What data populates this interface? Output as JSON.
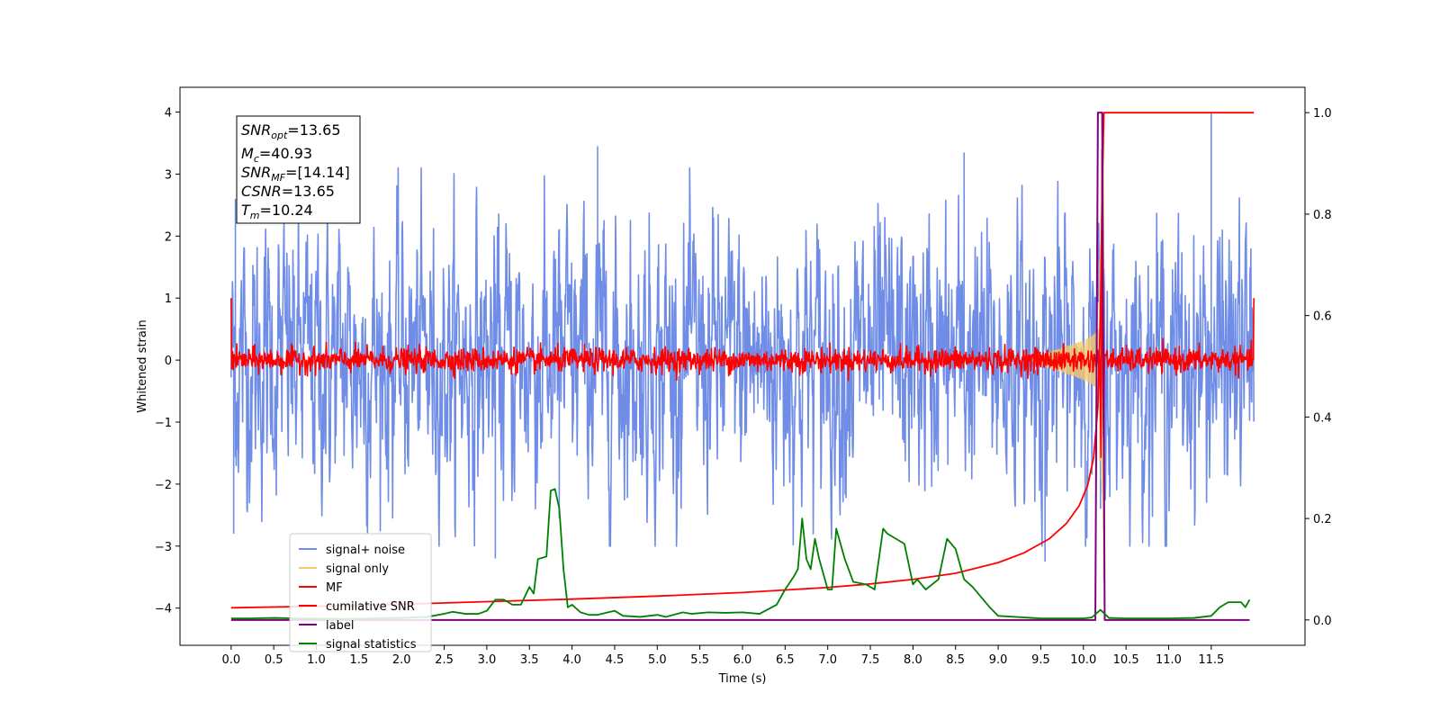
{
  "chart_data": {
    "type": "line",
    "title": "",
    "xlabel": "Time (s)",
    "ylabel": "Whitened strain",
    "xlim": [
      -0.6,
      12.6
    ],
    "ylim": [
      -4.6,
      4.4
    ],
    "y2lim": [
      -0.05,
      1.05
    ],
    "x_ticks": [
      0.0,
      0.5,
      1.0,
      1.5,
      2.0,
      2.5,
      3.0,
      3.5,
      4.0,
      4.5,
      5.0,
      5.5,
      6.0,
      6.5,
      7.0,
      7.5,
      8.0,
      8.5,
      9.0,
      9.5,
      10.0,
      10.5,
      11.0,
      11.5
    ],
    "x_tick_labels": [
      "0.0",
      "0.5",
      "1.0",
      "1.5",
      "2.0",
      "2.5",
      "3.0",
      "3.5",
      "4.0",
      "4.5",
      "5.0",
      "5.5",
      "6.0",
      "6.5",
      "7.0",
      "7.5",
      "8.0",
      "8.5",
      "9.0",
      "9.5",
      "10.0",
      "10.5",
      "11.0",
      "11.5"
    ],
    "y_ticks": [
      -4,
      -3,
      -2,
      -1,
      0,
      1,
      2,
      3,
      4
    ],
    "y_tick_labels": [
      "−4",
      "−3",
      "−2",
      "−1",
      "0",
      "1",
      "2",
      "3",
      "4"
    ],
    "y2_ticks": [
      0.0,
      0.2,
      0.4,
      0.6,
      0.8,
      1.0
    ],
    "y2_tick_labels": [
      "0.0",
      "0.2",
      "0.4",
      "0.6",
      "0.8",
      "1.0"
    ],
    "grid": false,
    "legend_position": "lower-left",
    "stats_box": {
      "snr_opt": "13.65",
      "mc": "40.93",
      "snr_mf": "[14.14]",
      "csnr": "13.65",
      "tm": "10.24"
    },
    "series": [
      {
        "name": "signal+ noise",
        "color": "#6f8de6",
        "axis": "left",
        "kind": "noise",
        "x_range": [
          0.0,
          12.0
        ],
        "amplitude_envelope": [
          [
            0.0,
            2.5
          ],
          [
            12.0,
            2.5
          ]
        ],
        "peak_values": [
          [
            0.05,
            2.6
          ],
          [
            0.03,
            -2.8
          ],
          [
            3.85,
            -2.55
          ],
          [
            4.3,
            3.45
          ],
          [
            8.6,
            3.35
          ],
          [
            9.55,
            -3.25
          ],
          [
            3.1,
            -3.2
          ],
          [
            11.5,
            4.0
          ],
          [
            10.2,
            -2.4
          ]
        ]
      },
      {
        "name": "signal only",
        "color": "#f5c96a",
        "axis": "left",
        "kind": "chirp",
        "merger_time": 10.24,
        "peak_amplitude": 3.6
      },
      {
        "name": "MF",
        "color": "#ff0000",
        "axis": "left",
        "kind": "mf",
        "x_range": [
          0.0,
          12.0
        ],
        "edge_value": 1.0,
        "noise_amplitude": 0.1,
        "peak": [
          10.22,
          3.65
        ]
      },
      {
        "name": "cumilative SNR",
        "color": "#ff0000",
        "axis": "right",
        "x": [
          0.0,
          1.0,
          2.0,
          3.0,
          4.0,
          5.0,
          6.0,
          7.0,
          7.5,
          8.0,
          8.5,
          9.0,
          9.3,
          9.6,
          9.8,
          9.95,
          10.05,
          10.12,
          10.17,
          10.2,
          10.22,
          10.24,
          10.26,
          12.0
        ],
        "values": [
          0.024,
          0.027,
          0.031,
          0.036,
          0.041,
          0.047,
          0.054,
          0.064,
          0.071,
          0.08,
          0.092,
          0.113,
          0.132,
          0.16,
          0.19,
          0.225,
          0.265,
          0.32,
          0.42,
          0.6,
          0.85,
          1.0,
          1.0,
          1.0
        ]
      },
      {
        "name": "label",
        "color": "#800080",
        "axis": "right",
        "x": [
          0.0,
          10.14,
          10.17,
          10.22,
          10.25,
          11.95
        ],
        "values": [
          0.0,
          0.0,
          1.0,
          1.0,
          0.0,
          0.0
        ]
      },
      {
        "name": "signal statistics",
        "color": "#008000",
        "axis": "right",
        "x": [
          0.0,
          0.2,
          0.5,
          0.8,
          1.0,
          1.3,
          1.6,
          2.0,
          2.3,
          2.5,
          2.6,
          2.75,
          2.9,
          3.0,
          3.1,
          3.2,
          3.3,
          3.4,
          3.5,
          3.55,
          3.6,
          3.7,
          3.75,
          3.8,
          3.85,
          3.9,
          3.95,
          4.0,
          4.1,
          4.2,
          4.3,
          4.5,
          4.6,
          4.8,
          5.0,
          5.1,
          5.3,
          5.4,
          5.6,
          5.8,
          6.0,
          6.2,
          6.4,
          6.5,
          6.6,
          6.65,
          6.7,
          6.75,
          6.8,
          6.85,
          6.9,
          7.0,
          7.05,
          7.1,
          7.15,
          7.2,
          7.3,
          7.45,
          7.55,
          7.65,
          7.7,
          7.9,
          8.0,
          8.05,
          8.15,
          8.3,
          8.4,
          8.5,
          8.6,
          8.7,
          8.9,
          9.0,
          9.5,
          10.0,
          10.1,
          10.2,
          10.3,
          10.5,
          11.0,
          11.3,
          11.5,
          11.6,
          11.7,
          11.85,
          11.9,
          11.95
        ],
        "values": [
          0.003,
          0.003,
          0.004,
          0.003,
          0.003,
          0.002,
          0.003,
          0.004,
          0.006,
          0.012,
          0.016,
          0.012,
          0.012,
          0.018,
          0.04,
          0.04,
          0.03,
          0.03,
          0.065,
          0.052,
          0.12,
          0.125,
          0.255,
          0.258,
          0.22,
          0.1,
          0.025,
          0.03,
          0.015,
          0.01,
          0.01,
          0.018,
          0.008,
          0.006,
          0.01,
          0.006,
          0.015,
          0.012,
          0.015,
          0.014,
          0.015,
          0.012,
          0.03,
          0.06,
          0.085,
          0.1,
          0.2,
          0.12,
          0.1,
          0.16,
          0.12,
          0.06,
          0.06,
          0.18,
          0.15,
          0.12,
          0.075,
          0.07,
          0.06,
          0.18,
          0.17,
          0.15,
          0.07,
          0.08,
          0.06,
          0.08,
          0.16,
          0.14,
          0.08,
          0.065,
          0.025,
          0.008,
          0.003,
          0.003,
          0.005,
          0.02,
          0.004,
          0.003,
          0.003,
          0.004,
          0.008,
          0.025,
          0.035,
          0.035,
          0.025,
          0.04
        ]
      }
    ]
  }
}
